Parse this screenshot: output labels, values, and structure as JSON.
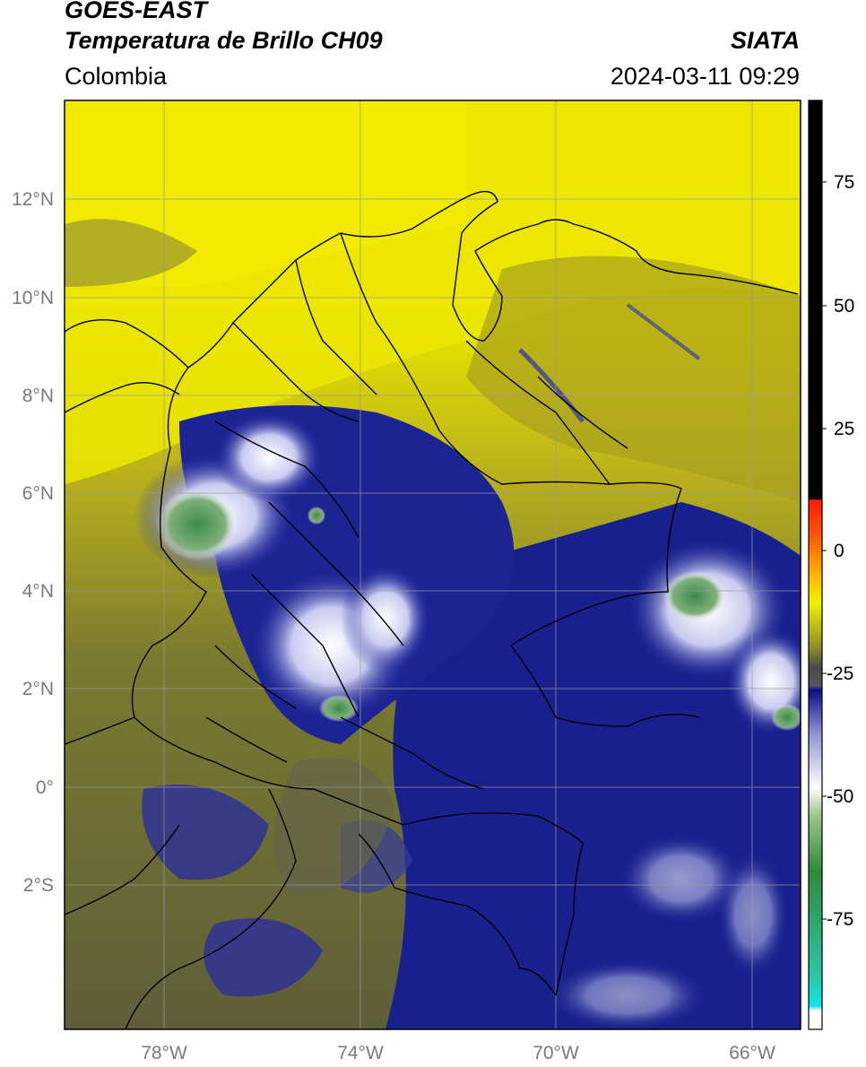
{
  "header": {
    "satellite": "GOES-EAST",
    "product": "Temperatura de Brillo CH09",
    "region": "Colombia",
    "source": "SIATA",
    "timestamp": "2024-03-11 09:29"
  },
  "map": {
    "lat_labels": [
      "12°N",
      "10°N",
      "8°N",
      "6°N",
      "4°N",
      "2°N",
      "0°",
      "2°S"
    ],
    "lon_labels": [
      "78°W",
      "74°W",
      "70°W",
      "66°W"
    ]
  },
  "colorbar": {
    "tick_labels": [
      "75",
      "50",
      "25",
      "0",
      "-25",
      "-50",
      "-75"
    ],
    "colors": {
      "black": "#000000",
      "red": "#ff1a00",
      "orange": "#ff9a00",
      "yellow": "#f0f000",
      "olive": "#7d7d2a",
      "gray": "#555555",
      "navy": "#0b0f86",
      "white": "#ffffff",
      "green": "#3a8a3a",
      "cyan": "#1ee6e6"
    }
  },
  "colors": {
    "cloud_top_navy": "#17208c",
    "warm_yellow": "#e8e000",
    "olive_mid": "#8a8a30",
    "coastline": "#000000"
  }
}
